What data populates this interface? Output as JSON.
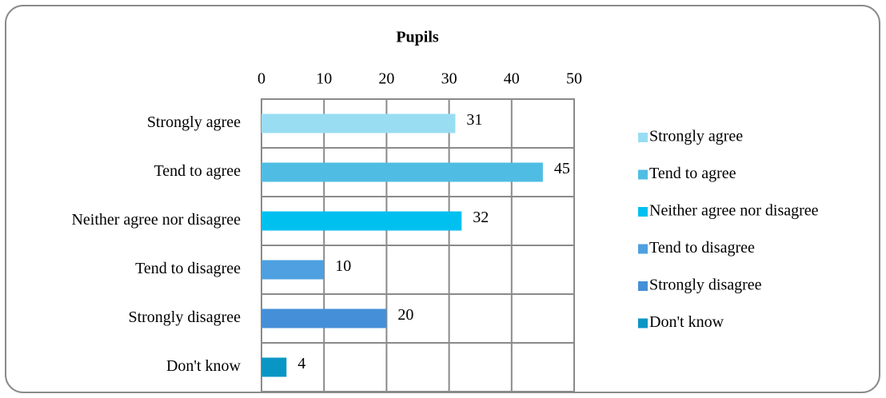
{
  "chart_data": {
    "type": "bar",
    "orientation": "horizontal",
    "title": "Pupils",
    "categories": [
      "Strongly agree",
      "Tend to agree",
      "Neither agree nor disagree",
      "Tend to disagree",
      "Strongly disagree",
      "Don't know"
    ],
    "values": [
      31,
      45,
      32,
      10,
      20,
      4
    ],
    "colors": [
      "#99ddf3",
      "#4fbde3",
      "#00c0f0",
      "#4ea0e0",
      "#458fd8",
      "#0a96c4"
    ],
    "xlim": [
      0,
      50
    ],
    "xticks": [
      0,
      10,
      20,
      30,
      40,
      50
    ],
    "grid": true,
    "legend": "right"
  }
}
